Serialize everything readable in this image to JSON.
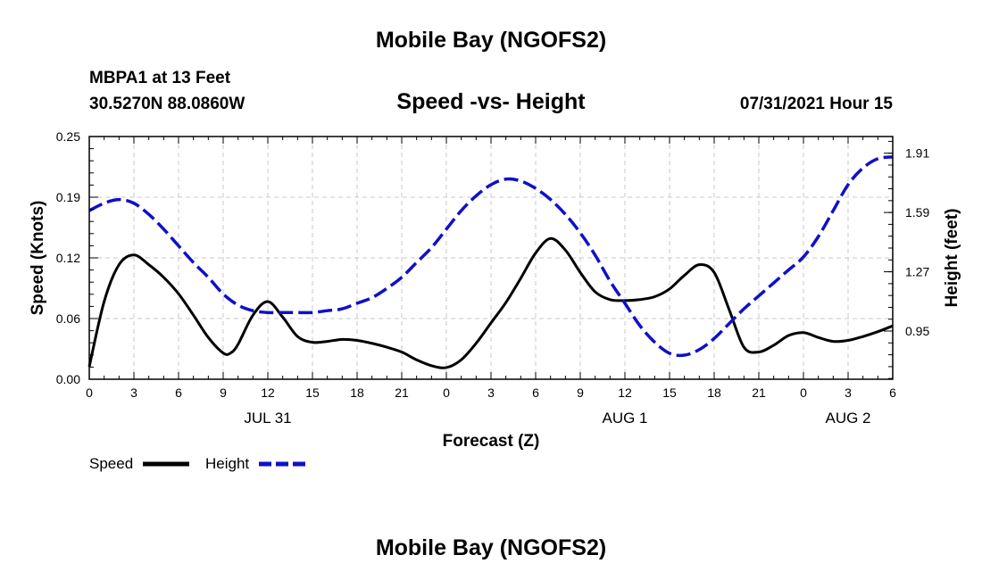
{
  "header": {
    "title": "Mobile Bay (NGOFS2)",
    "footer_title": "Mobile Bay (NGOFS2)",
    "station": "MBPA1 at 13 Feet",
    "coordinates": "30.5270N  88.0860W",
    "datetime": "07/31/2021 Hour 15"
  },
  "chart_data": {
    "type": "line",
    "title": "Speed -vs- Height",
    "xlabel": "Forecast (Z)",
    "ylabel": "Speed (Knots)",
    "y2label": "Height (feet)",
    "x_ticks": [
      "0",
      "3",
      "6",
      "9",
      "12",
      "15",
      "18",
      "21",
      "0",
      "3",
      "6",
      "9",
      "12",
      "15",
      "18",
      "21",
      "0",
      "3",
      "6"
    ],
    "day_labels": [
      {
        "label": "JUL 31",
        "hour": 12
      },
      {
        "label": "AUG 1",
        "hour": 36
      },
      {
        "label": "AUG 2",
        "hour": 51
      }
    ],
    "xlim": [
      0,
      54
    ],
    "ylim": [
      0,
      0.25
    ],
    "y_ticks": [
      "0.00",
      "0.06",
      "0.12",
      "0.19",
      "0.25"
    ],
    "y2lim": [
      0.69,
      2.0
    ],
    "y2_ticks": [
      0.95,
      1.27,
      1.59,
      1.91
    ],
    "grid": true,
    "legend_position": "bottom-left",
    "series": [
      {
        "name": "Speed",
        "axis": "left",
        "color": "#000000",
        "style": "solid",
        "x": [
          0,
          1,
          2,
          3,
          4,
          5,
          6,
          7,
          8,
          9,
          9.5,
          10,
          11,
          12,
          13,
          14,
          15,
          16,
          17,
          18,
          19,
          20,
          21,
          22,
          23,
          24,
          25,
          26,
          27,
          28,
          29,
          30,
          31,
          32,
          33,
          34,
          35,
          36,
          37,
          38,
          39,
          40,
          41,
          42,
          43,
          44,
          45,
          46,
          47,
          48,
          49,
          50,
          51,
          52,
          53,
          54
        ],
        "y": [
          0.013,
          0.08,
          0.118,
          0.128,
          0.118,
          0.105,
          0.088,
          0.066,
          0.043,
          0.027,
          0.027,
          0.036,
          0.066,
          0.08,
          0.064,
          0.044,
          0.038,
          0.039,
          0.041,
          0.04,
          0.037,
          0.033,
          0.028,
          0.02,
          0.014,
          0.012,
          0.02,
          0.037,
          0.058,
          0.079,
          0.104,
          0.13,
          0.145,
          0.133,
          0.11,
          0.09,
          0.082,
          0.081,
          0.082,
          0.085,
          0.093,
          0.107,
          0.118,
          0.11,
          0.072,
          0.033,
          0.028,
          0.035,
          0.045,
          0.048,
          0.043,
          0.039,
          0.04,
          0.044,
          0.049,
          0.055
        ]
      },
      {
        "name": "Height",
        "axis": "right",
        "color": "#1010c8",
        "style": "dashed",
        "x": [
          0,
          1,
          2,
          3,
          4,
          5,
          6,
          7,
          8,
          9,
          10,
          11,
          12,
          13,
          14,
          15,
          16,
          17,
          18,
          19,
          20,
          21,
          22,
          23,
          24,
          25,
          26,
          27,
          28,
          29,
          30,
          31,
          32,
          33,
          34,
          35,
          36,
          37,
          38,
          39,
          40,
          41,
          42,
          43,
          44,
          45,
          46,
          47,
          48,
          49,
          50,
          51,
          52,
          53,
          54
        ],
        "y": [
          1.6,
          1.64,
          1.66,
          1.64,
          1.58,
          1.5,
          1.41,
          1.32,
          1.24,
          1.15,
          1.09,
          1.06,
          1.05,
          1.05,
          1.05,
          1.05,
          1.06,
          1.07,
          1.1,
          1.13,
          1.18,
          1.24,
          1.32,
          1.4,
          1.5,
          1.6,
          1.68,
          1.74,
          1.77,
          1.76,
          1.72,
          1.66,
          1.58,
          1.48,
          1.36,
          1.22,
          1.1,
          0.98,
          0.89,
          0.83,
          0.82,
          0.85,
          0.91,
          0.99,
          1.07,
          1.14,
          1.21,
          1.28,
          1.35,
          1.46,
          1.6,
          1.74,
          1.83,
          1.88,
          1.89
        ]
      }
    ]
  }
}
